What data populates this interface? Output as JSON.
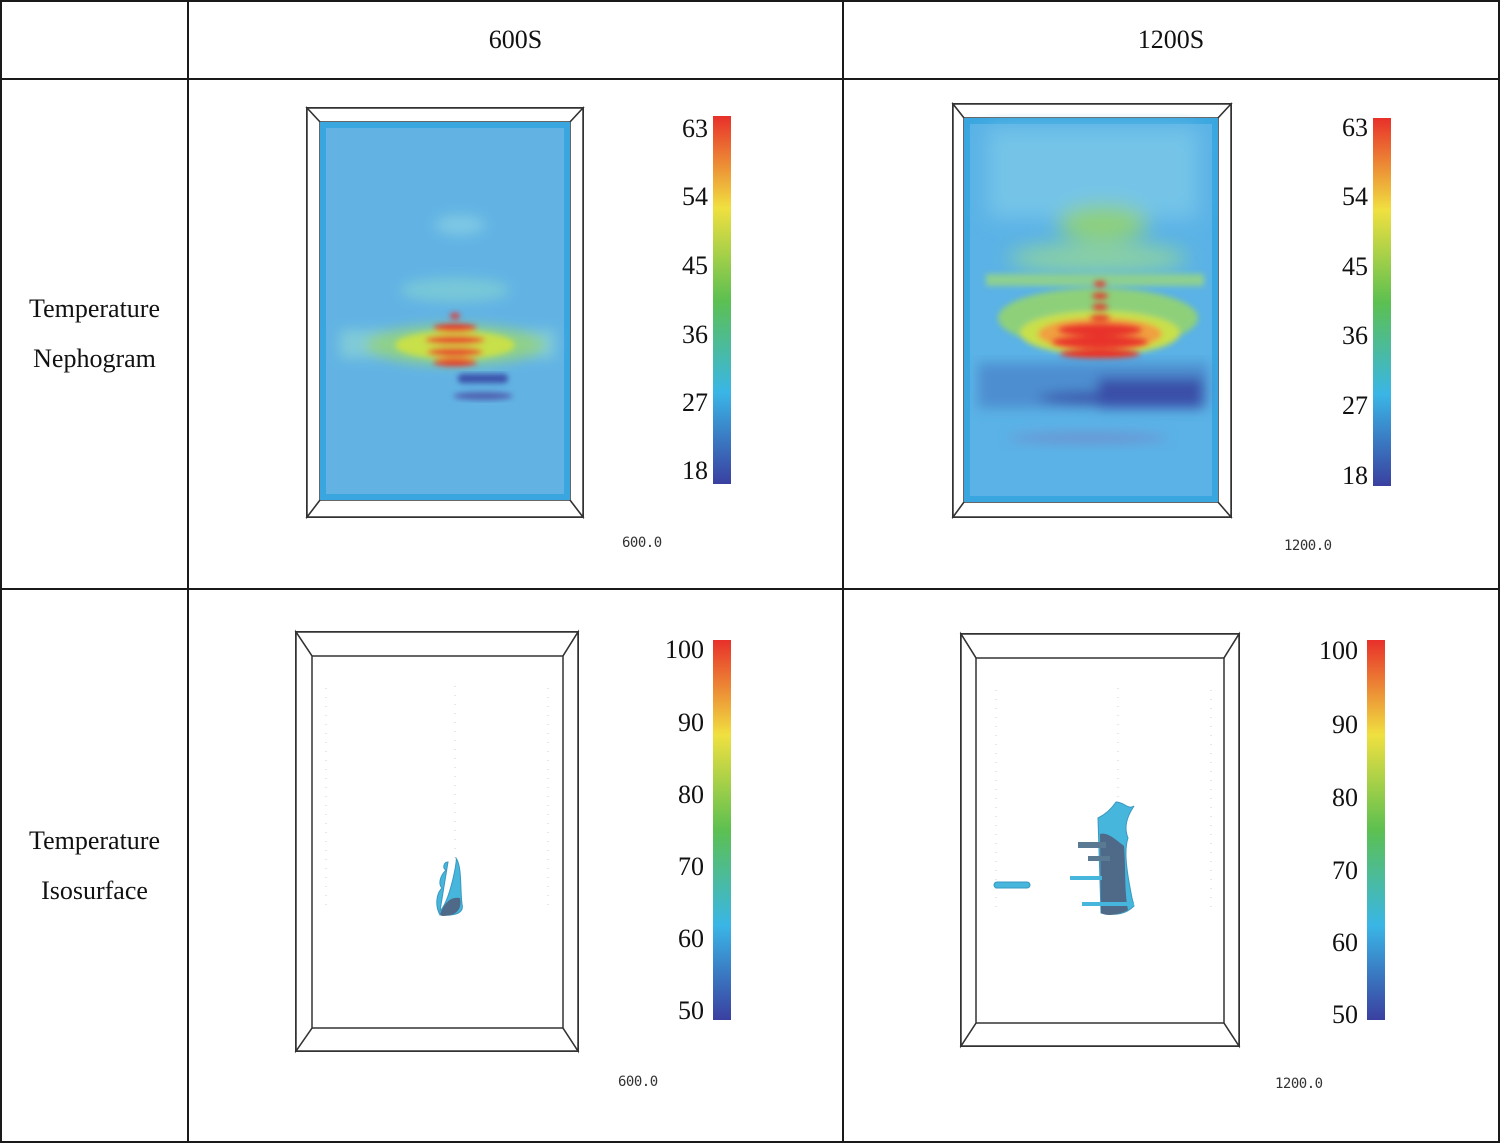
{
  "columns": [
    "",
    "600S",
    "1200S"
  ],
  "rows": [
    {
      "label": [
        "Temperature",
        "Nephogram"
      ]
    },
    {
      "label": [
        "Temperature",
        "Isosurface"
      ]
    }
  ],
  "panels": [
    {
      "id": "neph-600",
      "stamp": "600.0",
      "ticks": [
        "63",
        "54",
        "45",
        "36",
        "27",
        "18"
      ]
    },
    {
      "id": "neph-1200",
      "stamp": "1200.0",
      "ticks": [
        "63",
        "54",
        "45",
        "36",
        "27",
        "18"
      ]
    },
    {
      "id": "iso-600",
      "stamp": "600.0",
      "ticks": [
        "100",
        "90",
        "80",
        "70",
        "60",
        "50"
      ]
    },
    {
      "id": "iso-1200",
      "stamp": "1200.0",
      "ticks": [
        "100",
        "90",
        "80",
        "70",
        "60",
        "50"
      ]
    }
  ],
  "colors": {
    "domain_fill": "#5fb2e6",
    "domain_edge": "#3aa0dc",
    "hot": "#e8302a",
    "warm": "#f0e040",
    "mid": "#5cc050",
    "cool": "#3a50a8",
    "iso_fill": "#46b6dc",
    "iso_core": "#4f6a88"
  }
}
